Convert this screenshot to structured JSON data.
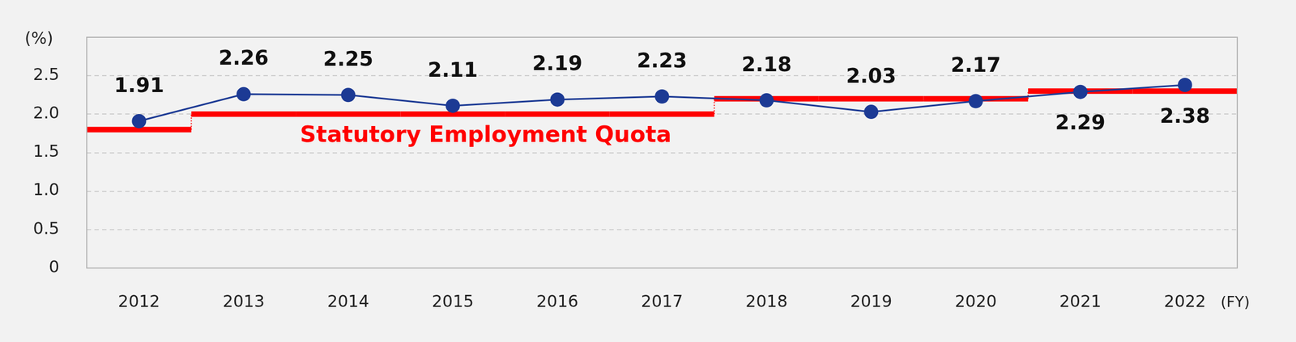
{
  "chart_data": {
    "type": "line",
    "x_label": "(FY)",
    "y_label": "(%)",
    "categories": [
      "2012",
      "2013",
      "2014",
      "2015",
      "2016",
      "2017",
      "2018",
      "2019",
      "2020",
      "2021",
      "2022"
    ],
    "series": [
      {
        "color": "#1c3a94",
        "marker": "circle",
        "line_style": "solid",
        "data_labels": true,
        "values": [
          1.91,
          2.26,
          2.25,
          2.11,
          2.19,
          2.23,
          2.18,
          2.03,
          2.17,
          2.29,
          2.38
        ]
      },
      {
        "name": "Statutory Employment Quota",
        "type": "step",
        "color": "#ff0000",
        "values": [
          1.8,
          2.0,
          2.0,
          2.0,
          2.0,
          2.0,
          2.2,
          2.2,
          2.2,
          2.3,
          2.3
        ]
      }
    ],
    "ylim": [
      0,
      3
    ],
    "yticks": [
      0,
      0.5,
      {
        "value": 1,
        "label": "1.0"
      },
      1.5,
      {
        "value": 2,
        "label": "2.0"
      },
      2.5
    ],
    "grid": true
  }
}
